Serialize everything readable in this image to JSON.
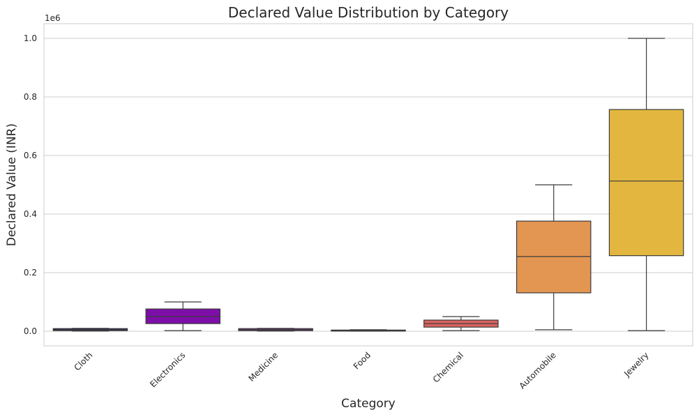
{
  "chart_data": {
    "type": "box",
    "title": "Declared Value Distribution by Category",
    "xlabel": "Category",
    "ylabel": "Declared Value (INR)",
    "y_offset_label": "1e6",
    "ylim": [
      -0.05,
      1.05
    ],
    "yticks": [
      0.0,
      0.2,
      0.4,
      0.6,
      0.8,
      1.0
    ],
    "ytick_labels": [
      "0.0",
      "0.2",
      "0.4",
      "0.6",
      "0.8",
      "1.0"
    ],
    "grid": "horizontal",
    "categories": [
      "Cloth",
      "Electronics",
      "Medicine",
      "Food",
      "Chemical",
      "Automobile",
      "Jewelry"
    ],
    "boxes": [
      {
        "category": "Cloth",
        "whisker_low": 0.0005,
        "q1": 0.002,
        "median": 0.005,
        "q3": 0.009,
        "whisker_high": 0.01,
        "color": "#2e1760"
      },
      {
        "category": "Electronics",
        "whisker_low": 0.002,
        "q1": 0.026,
        "median": 0.05,
        "q3": 0.076,
        "whisker_high": 0.1,
        "color": "#7d0ea8"
      },
      {
        "category": "Medicine",
        "whisker_low": 0.0005,
        "q1": 0.002,
        "median": 0.005,
        "q3": 0.009,
        "whisker_high": 0.01,
        "color": "#8a2a91"
      },
      {
        "category": "Food",
        "whisker_low": 0.0002,
        "q1": 0.001,
        "median": 0.0025,
        "q3": 0.004,
        "whisker_high": 0.005,
        "color": "#b42f8c"
      },
      {
        "category": "Chemical",
        "whisker_low": 0.002,
        "q1": 0.014,
        "median": 0.026,
        "q3": 0.038,
        "whisker_high": 0.05,
        "color": "#d8645f"
      },
      {
        "category": "Automobile",
        "whisker_low": 0.005,
        "q1": 0.131,
        "median": 0.255,
        "q3": 0.376,
        "whisker_high": 0.5,
        "color": "#e39552"
      },
      {
        "category": "Jewelry",
        "whisker_low": 0.002,
        "q1": 0.258,
        "median": 0.513,
        "q3": 0.757,
        "whisker_high": 1.0,
        "color": "#e3b73f"
      }
    ]
  }
}
